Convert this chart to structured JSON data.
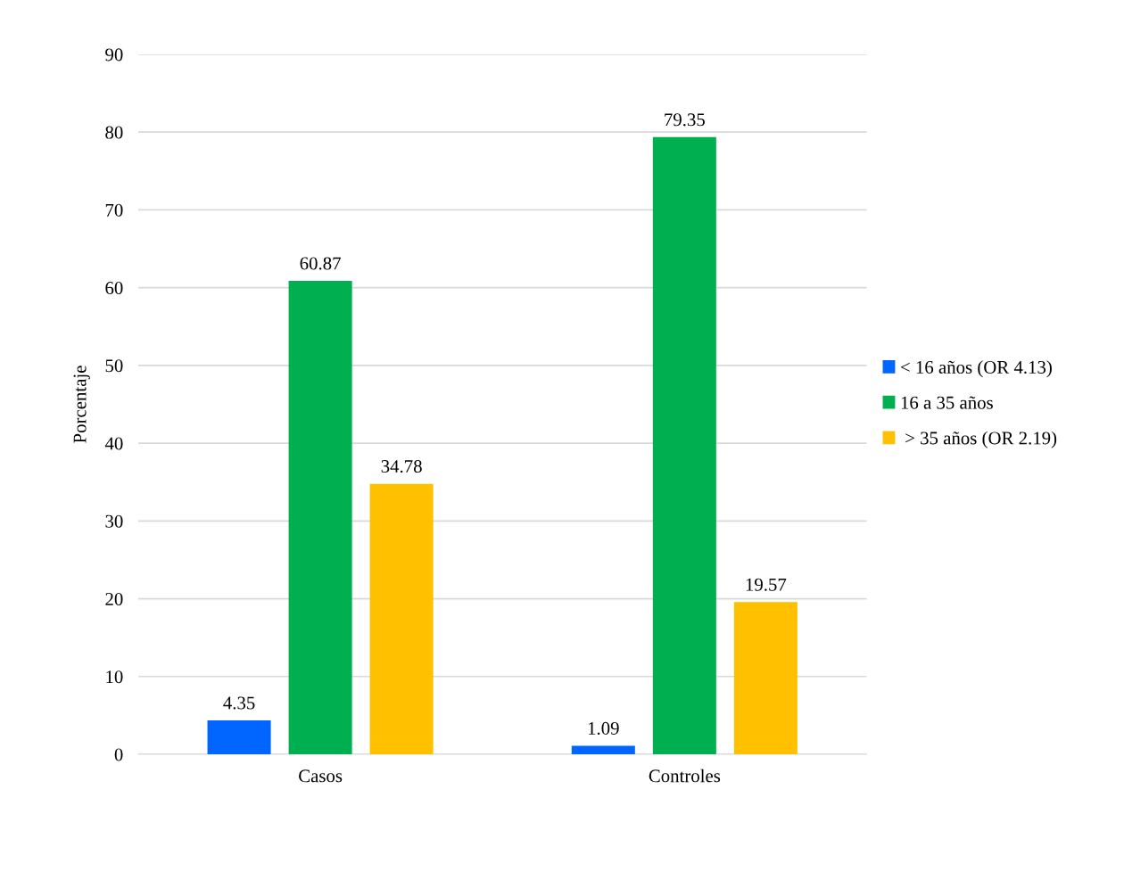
{
  "chart_data": {
    "type": "bar",
    "ylabel": "Porcentaje",
    "categories": [
      "Casos",
      "Controles"
    ],
    "series": [
      {
        "name": "< 16 años (OR 4.13)",
        "color": "#0066ff",
        "values": [
          4.35,
          1.09
        ]
      },
      {
        "name": "16 a 35 años",
        "color": "#00b050",
        "values": [
          60.87,
          79.35
        ]
      },
      {
        "name": " > 35 años (OR 2.19)",
        "color": "#ffc000",
        "values": [
          34.78,
          19.57
        ]
      }
    ],
    "ylim": [
      0,
      90
    ],
    "yticks": [
      0,
      10,
      20,
      30,
      40,
      50,
      60,
      70,
      80,
      90
    ],
    "grid": "y",
    "legend": "right",
    "data_labels": true
  }
}
